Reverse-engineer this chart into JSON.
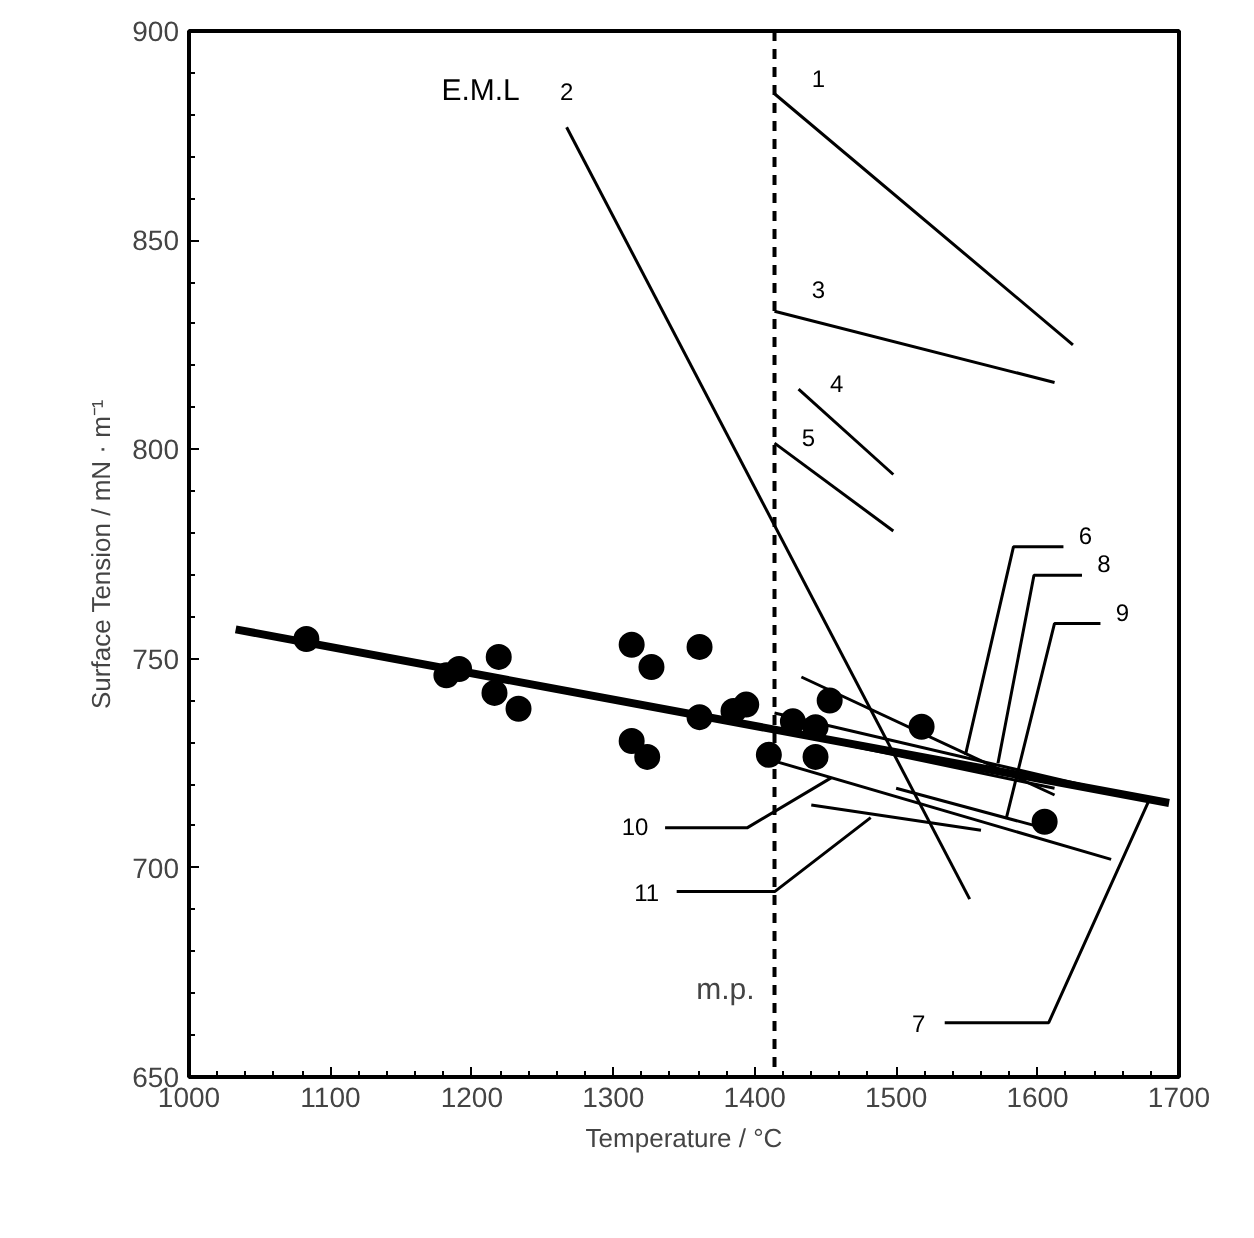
{
  "chart_data": {
    "type": "line",
    "xlabel": "Temperature / °C",
    "ylabel": "Surface Tension / mN · m⁻¹",
    "xlim": [
      1000,
      1700
    ],
    "xticks": [
      1000,
      1100,
      1200,
      1300,
      1400,
      1500,
      1600,
      1700
    ],
    "ylim": [
      650,
      900
    ],
    "yticks": [
      650,
      700,
      750,
      800,
      850,
      900
    ],
    "grid": false,
    "line_style": "solid",
    "ref_lines": [
      {
        "axis": "x",
        "value": 1414,
        "label": "m.p.",
        "line_style": "dashed",
        "color": "#000000"
      }
    ],
    "series": [
      {
        "color": "#000000",
        "x": [
          1033,
          1693
        ],
        "values": [
          757,
          715.5
        ]
      },
      {
        "type": "scatter",
        "marker": "circle",
        "color": "#000000",
        "x": [
          1083,
          1182,
          1191,
          1219,
          1216,
          1233,
          1313,
          1327,
          1313,
          1324,
          1361,
          1361,
          1385,
          1394,
          1410,
          1427,
          1443,
          1443,
          1453,
          1518,
          1605
        ],
        "values": [
          754.7,
          746,
          747.5,
          750.4,
          741.8,
          738,
          753.3,
          748,
          730.3,
          726.5,
          752.8,
          736,
          737.5,
          739,
          727,
          735,
          733.6,
          726.5,
          740,
          733.7,
          711
        ]
      },
      {
        "color": "#000000",
        "x": [
          1414,
          1625
        ],
        "values": [
          885,
          825
        ]
      },
      {
        "color": "#000000",
        "x": [
          1267,
          1552
        ],
        "values": [
          877,
          692.5
        ]
      },
      {
        "color": "#000000",
        "x": [
          1414,
          1612
        ],
        "values": [
          833,
          816
        ]
      },
      {
        "color": "#000000",
        "x": [
          1431,
          1498
        ],
        "values": [
          814.4,
          794
        ]
      },
      {
        "color": "#000000",
        "x": [
          1414,
          1498
        ],
        "values": [
          801.5,
          780.5
        ]
      },
      {
        "color": "#000000",
        "x": [
          1433,
          1612
        ],
        "values": [
          745.6,
          717.4
        ]
      },
      {
        "color": "#000000",
        "x": [
          1414,
          1680
        ],
        "values": [
          737,
          716
        ]
      },
      {
        "color": "#000000",
        "x": [
          1414,
          1612
        ],
        "values": [
          733,
          719
        ]
      },
      {
        "color": "#000000",
        "x": [
          1500,
          1610
        ],
        "values": [
          719,
          709
        ]
      },
      {
        "color": "#000000",
        "x": [
          1414,
          1652
        ],
        "values": [
          725.5,
          702
        ]
      },
      {
        "color": "#000000",
        "x": [
          1440,
          1560
        ],
        "values": [
          715,
          709
        ]
      }
    ],
    "annotations": [
      {
        "text": "1",
        "x": 1414,
        "y": 885
      },
      {
        "text": "E.M.L",
        "x": 1267,
        "y": 877
      },
      {
        "text": "2",
        "x": 1267,
        "y": 877
      },
      {
        "text": "3",
        "x": 1414,
        "y": 833
      },
      {
        "text": "4",
        "x": 1431,
        "y": 814.4
      },
      {
        "text": "5",
        "x": 1414,
        "y": 801.5
      },
      {
        "text": "6",
        "x": 1549,
        "y": 727
      },
      {
        "text": "8",
        "x": 1572,
        "y": 725
      },
      {
        "text": "9",
        "x": 1578,
        "y": 712
      },
      {
        "text": "10",
        "x": 1454,
        "y": 721.5
      },
      {
        "text": "11",
        "x": 1482,
        "y": 712
      },
      {
        "text": "7",
        "x": 1680,
        "y": 717
      }
    ]
  }
}
